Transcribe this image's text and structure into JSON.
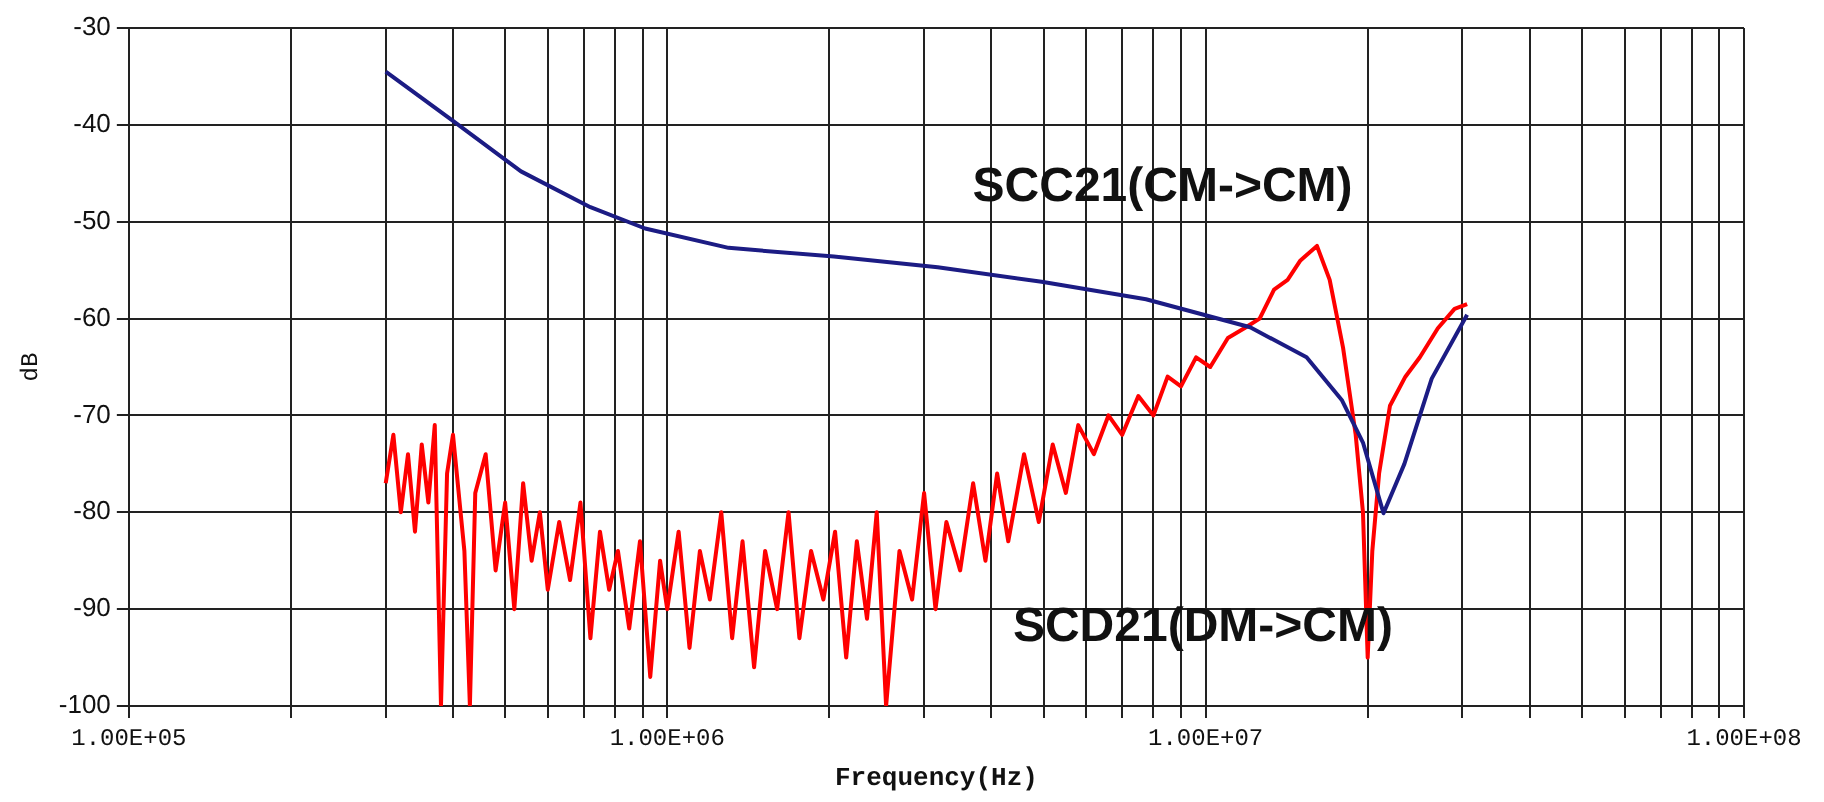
{
  "chart_data": {
    "type": "line",
    "xlabel": "Frequency(Hz)",
    "ylabel": "dB",
    "log": "x",
    "grid": true,
    "legend": false,
    "marker": "none",
    "line_style": "solid",
    "xlim": [
      100000,
      100000000
    ],
    "ylim": [
      -100,
      -30
    ],
    "xticks": [
      {
        "value": 100000,
        "label": "1.00E+05"
      },
      {
        "value": 200000,
        "label": null
      },
      {
        "value": 300000,
        "label": null
      },
      {
        "value": 400000,
        "label": null
      },
      {
        "value": 500000,
        "label": null
      },
      {
        "value": 600000,
        "label": null
      },
      {
        "value": 700000,
        "label": null
      },
      {
        "value": 800000,
        "label": null
      },
      {
        "value": 900000,
        "label": null
      },
      {
        "value": 1000000,
        "label": "1.00E+06"
      },
      {
        "value": 2000000,
        "label": null
      },
      {
        "value": 3000000,
        "label": null
      },
      {
        "value": 4000000,
        "label": null
      },
      {
        "value": 5000000,
        "label": null
      },
      {
        "value": 6000000,
        "label": null
      },
      {
        "value": 7000000,
        "label": null
      },
      {
        "value": 8000000,
        "label": null
      },
      {
        "value": 9000000,
        "label": null
      },
      {
        "value": 10000000,
        "label": "1.00E+07"
      },
      {
        "value": 20000000,
        "label": null
      },
      {
        "value": 30000000,
        "label": null
      },
      {
        "value": 40000000,
        "label": null
      },
      {
        "value": 50000000,
        "label": null
      },
      {
        "value": 60000000,
        "label": null
      },
      {
        "value": 70000000,
        "label": null
      },
      {
        "value": 80000000,
        "label": null
      },
      {
        "value": 90000000,
        "label": null
      },
      {
        "value": 100000000,
        "label": "1.00E+08"
      }
    ],
    "yticks": [
      -100,
      -90,
      -80,
      -70,
      -60,
      -50,
      -40,
      -30
    ],
    "series": [
      {
        "name": "SCC21(CM->CM)",
        "color": "#1c1c84",
        "x": [
          300000,
          400000,
          535000,
          720000,
          910000,
          1300000,
          2040000,
          3180000,
          4960000,
          7750000,
          12100000,
          15400000,
          17900000,
          19600000,
          21400000,
          23400000,
          26300000,
          30600000
        ],
        "values": [
          -34.5,
          -39.6,
          -44.8,
          -48.5,
          -50.7,
          -52.7,
          -53.6,
          -54.7,
          -56.2,
          -58,
          -60.9,
          -64,
          -68.4,
          -72.8,
          -80.1,
          -75,
          -66.2,
          -59.6
        ]
      },
      {
        "name": "SCD21(DM->CM)",
        "color": "#ff0000",
        "x": [
          300000,
          310000,
          320000,
          330000,
          340000,
          350000,
          360000,
          370000,
          380000,
          390000,
          400000,
          420000,
          430000,
          440000,
          460000,
          480000,
          500000,
          520000,
          540000,
          560000,
          580000,
          600000,
          630000,
          660000,
          690000,
          720000,
          750000,
          780000,
          810000,
          850000,
          890000,
          930000,
          970000,
          1000000,
          1050000,
          1100000,
          1150000,
          1200000,
          1260000,
          1320000,
          1380000,
          1450000,
          1520000,
          1600000,
          1680000,
          1760000,
          1850000,
          1950000,
          2050000,
          2150000,
          2250000,
          2350000,
          2450000,
          2550000,
          2700000,
          2850000,
          3000000,
          3150000,
          3300000,
          3500000,
          3700000,
          3900000,
          4100000,
          4300000,
          4600000,
          4900000,
          5200000,
          5500000,
          5800000,
          6200000,
          6600000,
          7000000,
          7500000,
          8000000,
          8500000,
          9000000,
          9600000,
          10200000,
          11000000,
          11800000,
          12600000,
          13400000,
          14200000,
          15000000,
          16100000,
          17000000,
          18000000,
          19000000,
          19600000,
          20000000,
          20400000,
          21000000,
          22000000,
          23500000,
          25000000,
          27000000,
          29000000,
          30600000
        ],
        "values": [
          -77,
          -72,
          -80,
          -74,
          -82,
          -73,
          -79,
          -71,
          -100,
          -76,
          -72,
          -84,
          -100,
          -78,
          -74,
          -86,
          -79,
          -90,
          -77,
          -85,
          -80,
          -88,
          -81,
          -87,
          -79,
          -93,
          -82,
          -88,
          -84,
          -92,
          -83,
          -97,
          -85,
          -90,
          -82,
          -94,
          -84,
          -89,
          -80,
          -93,
          -83,
          -96,
          -84,
          -90,
          -80,
          -93,
          -84,
          -89,
          -82,
          -95,
          -83,
          -91,
          -80,
          -100,
          -84,
          -89,
          -78,
          -90,
          -81,
          -86,
          -77,
          -85,
          -76,
          -83,
          -74,
          -81,
          -73,
          -78,
          -71,
          -74,
          -70,
          -72,
          -68,
          -70,
          -66,
          -67,
          -64,
          -65,
          -62,
          -61,
          -60,
          -57,
          -56,
          -54,
          -52.5,
          -56,
          -63,
          -72,
          -80,
          -95,
          -84,
          -76,
          -69,
          -66,
          -64,
          -61,
          -59,
          -58.5
        ]
      }
    ]
  }
}
